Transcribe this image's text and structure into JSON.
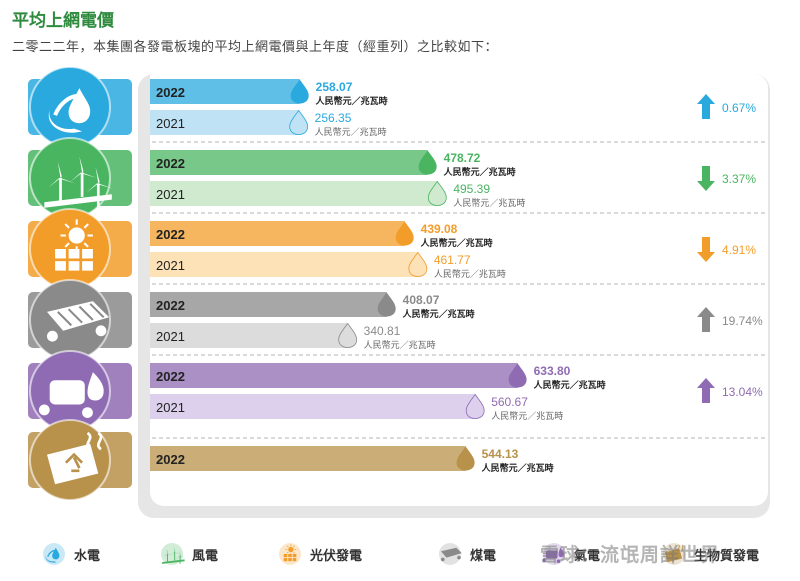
{
  "title": "平均上網電價",
  "subtitle": "二零二二年，本集團各發電板塊的平均上網電價與上年度（經重列）之比較如下：",
  "unit_label": "人民幣元／兆瓦時",
  "watermark": "雪球：流氓周詳世界",
  "chart_data": {
    "type": "bar",
    "orientation": "horizontal",
    "unit": "人民幣元／兆瓦時",
    "xlim": [
      0,
      700
    ],
    "groups": [
      {
        "name": "水電",
        "icon": "water-drop-icon",
        "color": "#2aa9df",
        "light": "#bfe3f5",
        "bars": [
          {
            "year": "2022",
            "value": 258.07,
            "label": "258.07"
          },
          {
            "year": "2021",
            "value": 256.35,
            "label": "256.35"
          }
        ],
        "change": "0.67%",
        "direction": "up"
      },
      {
        "name": "風電",
        "icon": "wind-turbine-icon",
        "color": "#49b561",
        "light": "#cfeacf",
        "bars": [
          {
            "year": "2022",
            "value": 478.72,
            "label": "478.72"
          },
          {
            "year": "2021",
            "value": 495.39,
            "label": "495.39"
          }
        ],
        "change": "3.37%",
        "direction": "down"
      },
      {
        "name": "光伏發電",
        "icon": "solar-panel-icon",
        "color": "#f29d2a",
        "light": "#fde2b8",
        "bars": [
          {
            "year": "2022",
            "value": 439.08,
            "label": "439.08"
          },
          {
            "year": "2021",
            "value": 461.77,
            "label": "461.77"
          }
        ],
        "change": "4.91%",
        "direction": "down"
      },
      {
        "name": "煤電",
        "icon": "coal-plant-icon",
        "color": "#8a8a8a",
        "light": "#dcdcdc",
        "bars": [
          {
            "year": "2022",
            "value": 408.07,
            "label": "408.07"
          },
          {
            "year": "2021",
            "value": 340.81,
            "label": "340.81"
          }
        ],
        "change": "19.74%",
        "direction": "up"
      },
      {
        "name": "氣電",
        "icon": "gas-power-icon",
        "color": "#8f6bb3",
        "light": "#ddd0ec",
        "bars": [
          {
            "year": "2022",
            "value": 633.8,
            "label": "633.80"
          },
          {
            "year": "2021",
            "value": 560.67,
            "label": "560.67"
          }
        ],
        "change": "13.04%",
        "direction": "up"
      },
      {
        "name": "生物質發電",
        "icon": "biomass-icon",
        "color": "#b8914a",
        "light": "#e7d6b0",
        "bars": [
          {
            "year": "2022",
            "value": 544.13,
            "label": "544.13"
          }
        ],
        "change": "",
        "direction": ""
      }
    ]
  },
  "legend": [
    {
      "label": "水電",
      "icon": "water-drop-icon",
      "color": "#2aa9df"
    },
    {
      "label": "風電",
      "icon": "wind-turbine-icon",
      "color": "#49b561"
    },
    {
      "label": "光伏發電",
      "icon": "solar-panel-icon",
      "color": "#f29d2a"
    },
    {
      "label": "煤電",
      "icon": "coal-plant-icon",
      "color": "#8a8a8a"
    },
    {
      "label": "氣電",
      "icon": "gas-power-icon",
      "color": "#8f6bb3"
    },
    {
      "label": "生物質發電",
      "icon": "biomass-icon",
      "color": "#b8914a"
    }
  ]
}
